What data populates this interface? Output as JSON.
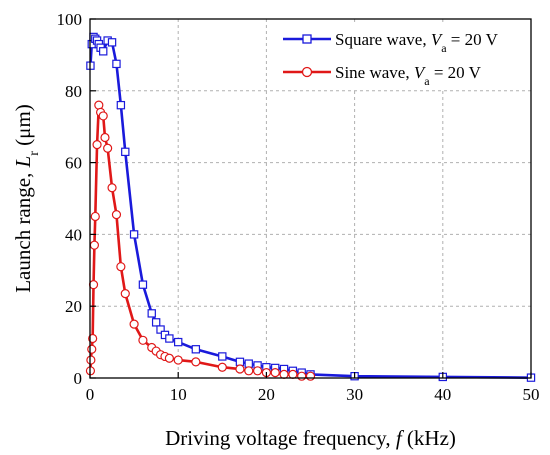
{
  "chart_data": {
    "type": "line",
    "xlabel": {
      "prefix": "Driving voltage frequency, ",
      "symbol": "f",
      "unit": " (kHz)"
    },
    "ylabel": {
      "prefix": "Launch range, ",
      "symbol": "L",
      "subscript": "r",
      "unit": " (μm)"
    },
    "xlim": [
      0,
      50
    ],
    "ylim": [
      0,
      100
    ],
    "xticks": [
      0,
      10,
      20,
      30,
      40,
      50
    ],
    "yticks": [
      0,
      20,
      40,
      60,
      80,
      100
    ],
    "grid": true,
    "legend_position": "top-right",
    "series": [
      {
        "name": "Square wave, V_a = 20 V",
        "legend": {
          "prefix": "Square wave, ",
          "symbol": "V",
          "subscript": "a",
          "suffix": " = 20 V"
        },
        "color": "#1a1adb",
        "marker": "square",
        "x": [
          0.05,
          0.2,
          0.4,
          0.6,
          0.8,
          1.0,
          1.2,
          1.5,
          2.0,
          2.5,
          3.0,
          3.5,
          4.0,
          5.0,
          6.0,
          7.0,
          7.5,
          8.0,
          8.5,
          9.0,
          10,
          12,
          15,
          17,
          18,
          19,
          20,
          21,
          22,
          23,
          24,
          25,
          30,
          40,
          50
        ],
        "y": [
          87,
          93,
          95,
          94.5,
          94,
          93,
          92,
          91,
          94,
          93.5,
          87.5,
          76,
          63,
          40,
          26,
          18,
          15.5,
          13.5,
          12,
          11,
          10,
          8,
          6,
          4.5,
          4,
          3.5,
          3,
          2.8,
          2.5,
          2,
          1.5,
          1,
          0.5,
          0.3,
          0.1
        ]
      },
      {
        "name": "Sine wave, V_a = 20 V",
        "legend": {
          "prefix": "Sine wave, ",
          "symbol": "V",
          "subscript": "a",
          "suffix": " = 20 V"
        },
        "color": "#e01818",
        "marker": "circle",
        "x": [
          0.05,
          0.1,
          0.2,
          0.3,
          0.4,
          0.5,
          0.6,
          0.8,
          1.0,
          1.2,
          1.5,
          1.7,
          2.0,
          2.5,
          3.0,
          3.5,
          4.0,
          5.0,
          6.0,
          7.0,
          7.5,
          8.0,
          8.5,
          9.0,
          10,
          12,
          15,
          17,
          18,
          19,
          20,
          21,
          22,
          23,
          24,
          25
        ],
        "y": [
          2,
          5,
          8,
          11,
          26,
          37,
          45,
          65,
          76,
          74,
          73,
          67,
          64,
          53,
          45.5,
          31,
          23.5,
          15,
          10.5,
          8.5,
          7.5,
          6.5,
          6,
          5.5,
          5,
          4.5,
          3,
          2.5,
          2,
          2,
          1.5,
          1.5,
          1,
          1,
          0.5,
          0.5
        ]
      }
    ]
  }
}
